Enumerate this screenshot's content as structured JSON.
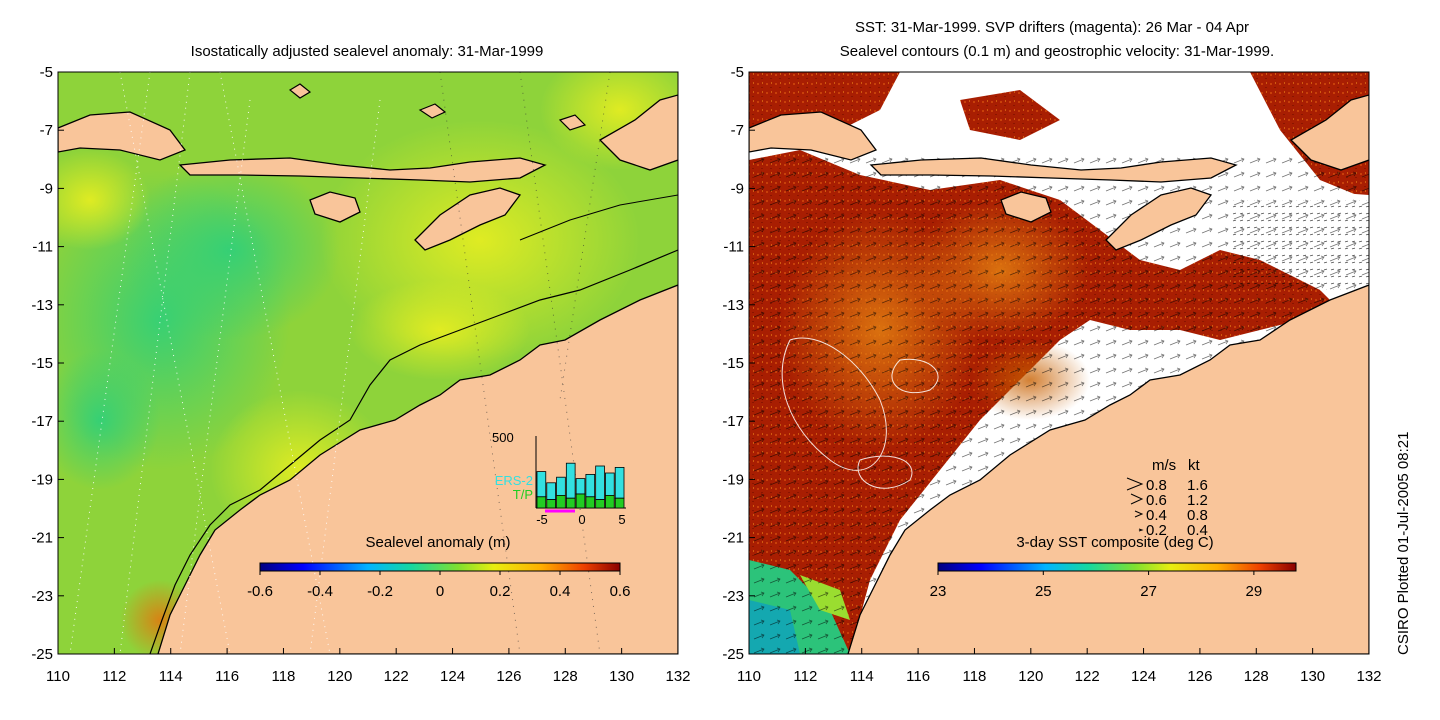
{
  "left_panel": {
    "title": "Isostatically adjusted sealevel anomaly: 31-Mar-1999",
    "colorbar": {
      "label": "Sealevel anomaly (m)",
      "ticks": [
        "-0.6",
        "-0.4",
        "-0.2",
        "0",
        "0.2",
        "0.4",
        "0.6"
      ],
      "range": [
        -0.6,
        0.6
      ]
    },
    "inset": {
      "ymax_label": "500",
      "legend": [
        "ERS-2",
        "T/P"
      ],
      "legend_colors": [
        "#33e0e0",
        "#22cc22"
      ],
      "x_ticks": [
        "-5",
        "0",
        "5"
      ],
      "ers2_counts": [
        260,
        180,
        220,
        320,
        210,
        240,
        300,
        250,
        290
      ],
      "tp_counts": [
        80,
        60,
        90,
        70,
        100,
        80,
        60,
        90,
        70
      ]
    }
  },
  "right_panel": {
    "title_line1": "SST: 31-Mar-1999. SVP drifters (magenta): 26 Mar - 04 Apr",
    "title_line2": "Sealevel contours (0.1 m) and geostrophic velocity: 31-Mar-1999.",
    "colorbar": {
      "label": "3-day SST composite (deg C)",
      "ticks": [
        "23",
        "25",
        "27",
        "29"
      ],
      "range": [
        23,
        29.8
      ]
    },
    "velocity_key": {
      "header_ms": "m/s",
      "header_kt": "kt",
      "rows": [
        [
          "0.8",
          "1.6"
        ],
        [
          "0.6",
          "1.2"
        ],
        [
          "0.4",
          "0.8"
        ],
        [
          "0.2",
          "0.4"
        ]
      ]
    }
  },
  "axes": {
    "x_ticks": [
      "110",
      "112",
      "114",
      "116",
      "118",
      "120",
      "122",
      "124",
      "126",
      "128",
      "130",
      "132"
    ],
    "y_ticks": [
      "-5",
      "-7",
      "-9",
      "-11",
      "-13",
      "-15",
      "-17",
      "-19",
      "-21",
      "-23",
      "-25"
    ],
    "lon_range": [
      110,
      132
    ],
    "lat_range": [
      -25,
      -5
    ]
  },
  "credit": "CSIRO Plotted 01-Jul-2005 08:21",
  "colors": {
    "land": "#f9c59a",
    "coast": "#000000",
    "sst_warm": "#a01e00",
    "sla_base": "#8ed33a"
  }
}
